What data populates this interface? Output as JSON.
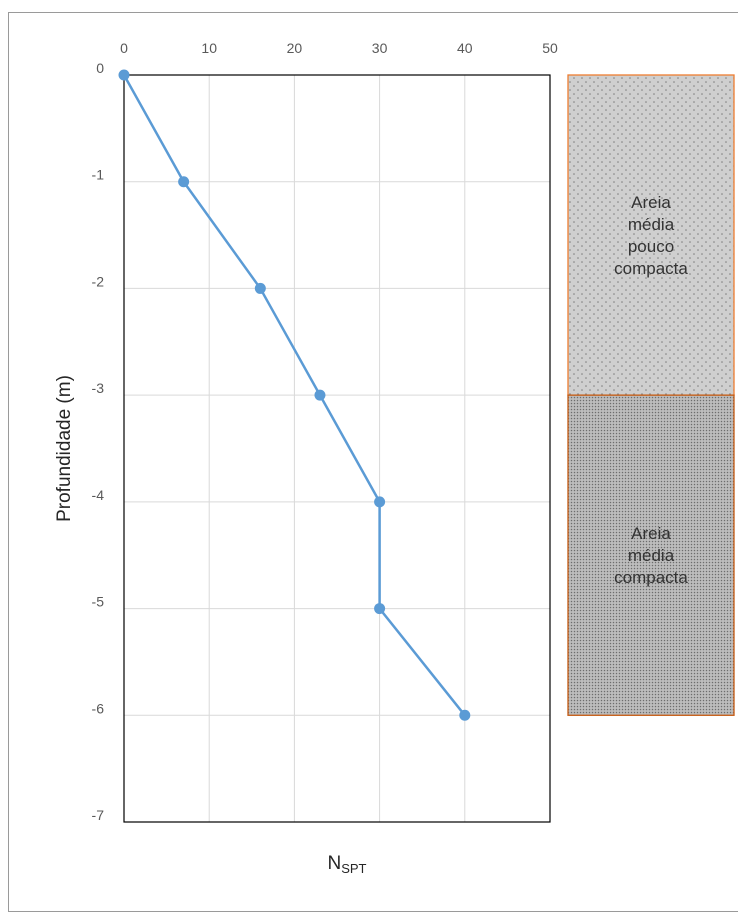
{
  "chart_data": {
    "type": "line",
    "xlabel": "N",
    "xlabel_sub": "SPT",
    "ylabel": "Profundidade (m)",
    "xlim": [
      0,
      50
    ],
    "ylim": [
      -7,
      0
    ],
    "x_ticks": [
      "0",
      "10",
      "20",
      "30",
      "40",
      "50"
    ],
    "y_ticks": [
      "0",
      "-1",
      "-2",
      "-3",
      "-4",
      "-5",
      "-6",
      "-7"
    ],
    "x_axis_position": "top",
    "grid": true,
    "series": [
      {
        "color": "#5b9bd5",
        "x": [
          0,
          7,
          16,
          23,
          30,
          30,
          40
        ],
        "y": [
          0,
          -1,
          -2,
          -3,
          -4,
          -5,
          -6
        ]
      }
    ],
    "soil_layers": [
      {
        "lines": [
          "Areia",
          "média",
          "pouco",
          "compacta"
        ],
        "top": 0,
        "bottom": -3,
        "fill": "#c8c8c8",
        "border": "#ed7d31"
      },
      {
        "lines": [
          "Areia",
          "média",
          "compacta"
        ],
        "top": -3,
        "bottom": -6,
        "fill": "#a6a6a6",
        "border": "#c55a11"
      }
    ]
  }
}
